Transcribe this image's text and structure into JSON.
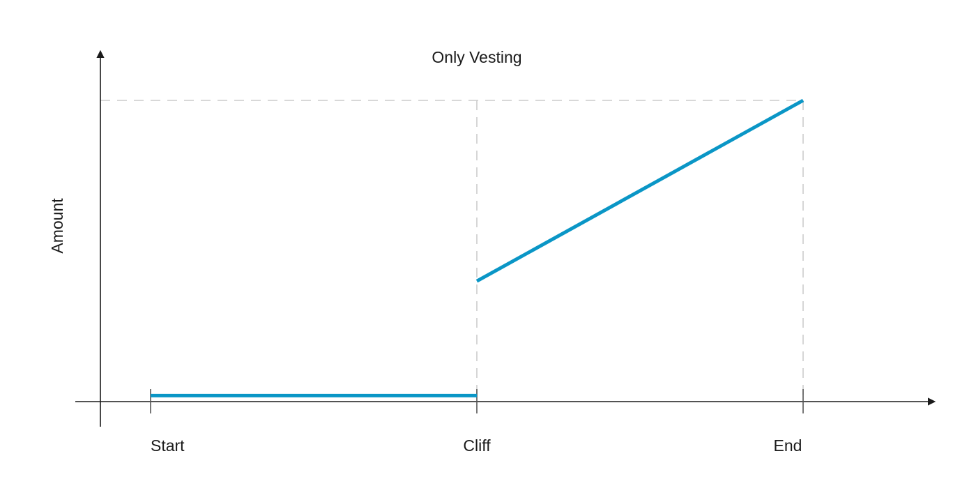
{
  "chart_data": {
    "type": "line",
    "title": "Only Vesting",
    "xlabel": "",
    "ylabel": "Amount",
    "x_ticks": [
      {
        "label": "Start",
        "value": 0
      },
      {
        "label": "Cliff",
        "value": 1
      },
      {
        "label": "End",
        "value": 2
      }
    ],
    "xlim": [
      -0.153,
      2.4
    ],
    "ylim": [
      0,
      100
    ],
    "reference_lines": {
      "vertical_at_x": [
        1,
        2
      ],
      "horizontal_at_y": [
        100
      ]
    },
    "grid": false,
    "legend": "none",
    "series": [
      {
        "color": "#0a96c6",
        "segments": [
          [
            {
              "x": 0,
              "y": 2
            },
            {
              "x": 1,
              "y": 2
            }
          ],
          [
            {
              "x": 1,
              "y": 40
            },
            {
              "x": 2,
              "y": 100
            }
          ]
        ]
      }
    ],
    "colors": {
      "axis": "#1a1a1a",
      "reference": "#cccccc",
      "tick": "#555555"
    }
  }
}
